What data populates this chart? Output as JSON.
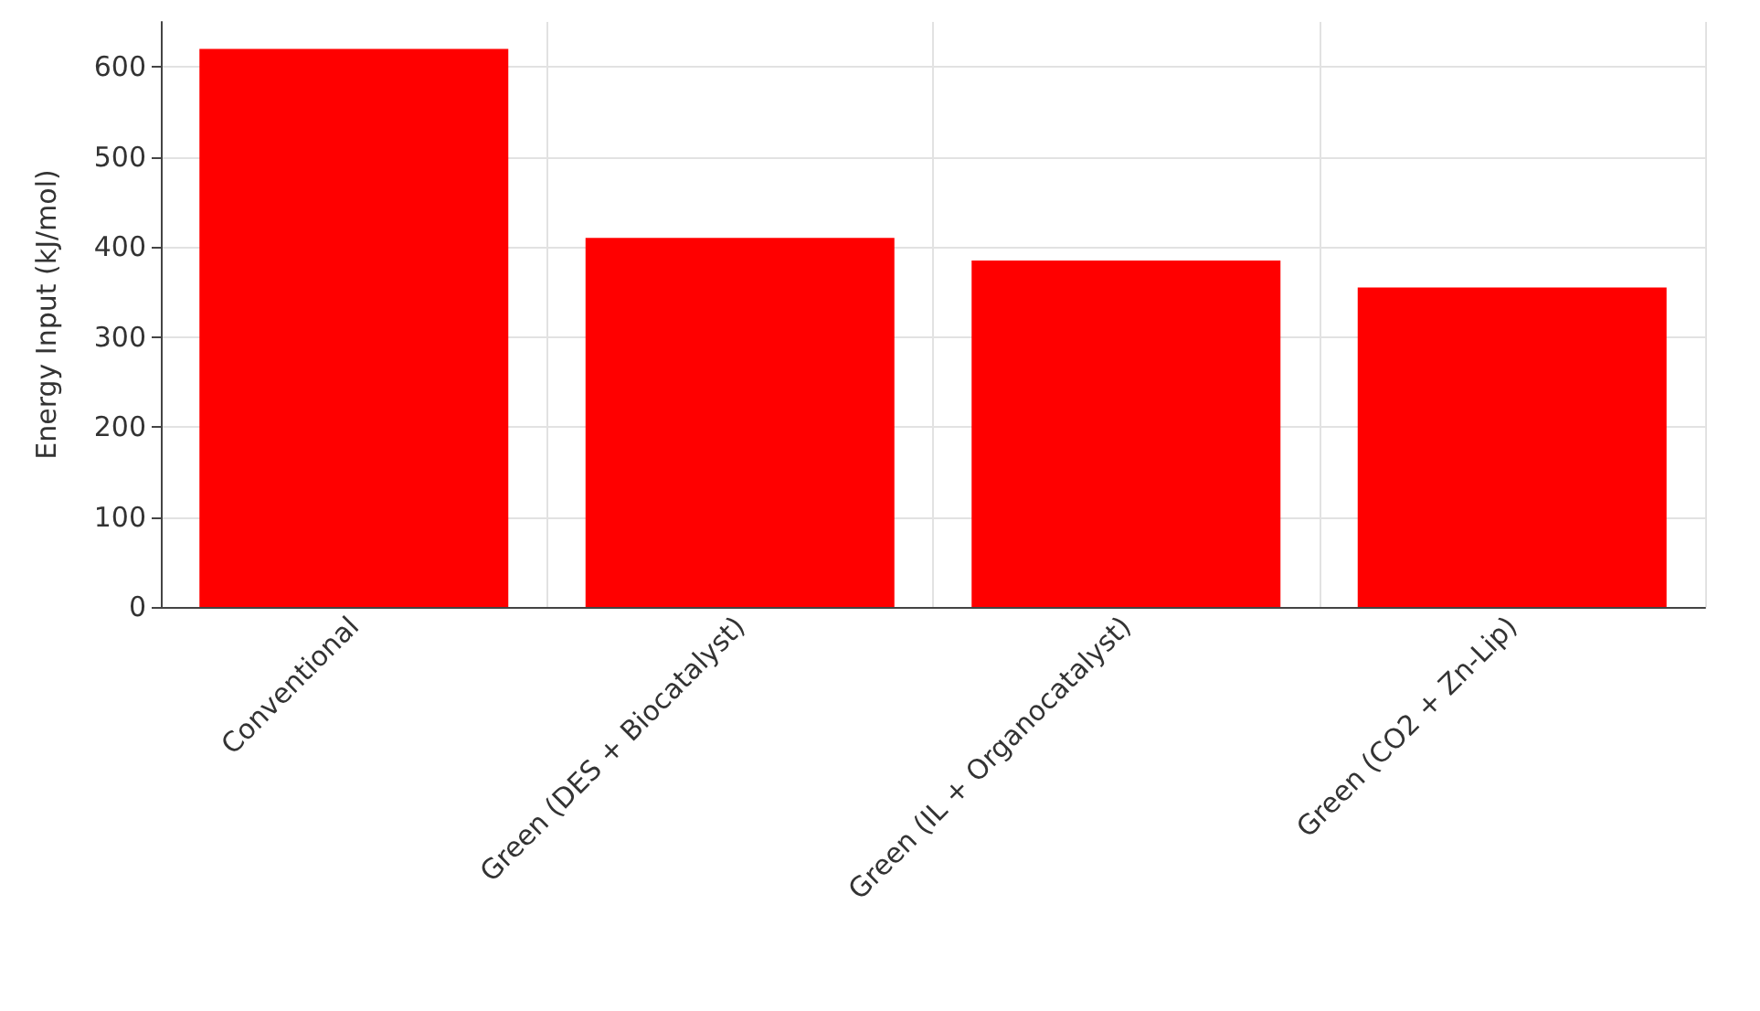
{
  "chart_data": {
    "type": "bar",
    "ylabel": "Energy Input (kJ/mol)",
    "categories": [
      "Conventional",
      "Green (DES + Biocatalyst)",
      "Green (IL + Organocatalyst)",
      "Green (CO2 + Zn-Lip)"
    ],
    "values": [
      620,
      410,
      385,
      355
    ],
    "color": "#ff0000",
    "ylim": [
      0,
      650
    ],
    "yticks": [
      0,
      100,
      200,
      300,
      400,
      500,
      600
    ],
    "grid": true
  }
}
